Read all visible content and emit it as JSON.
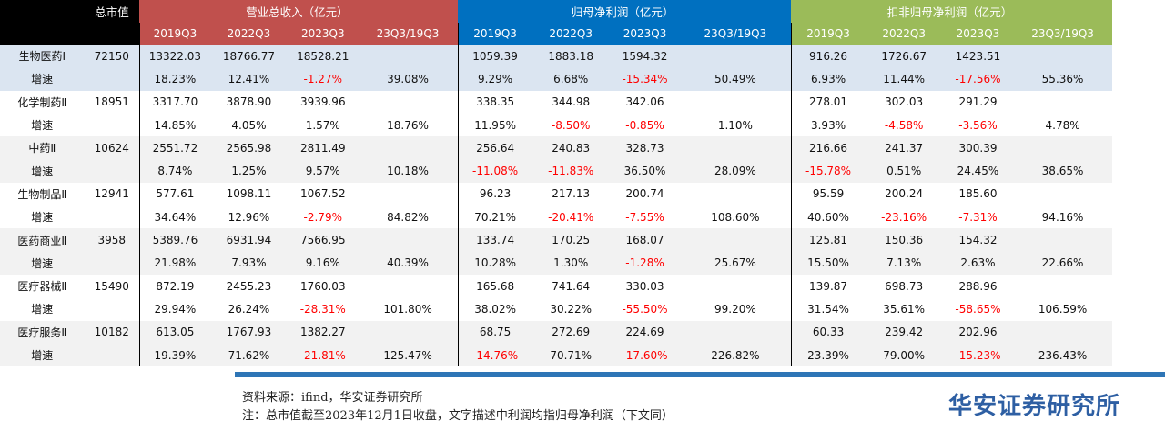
{
  "header": {
    "market_cap": "总市值",
    "revenue": "营业总收入（亿元）",
    "net_profit": "归母净利润（亿元）",
    "deducted_profit": "扣非归母净利润（亿元）",
    "periods": [
      "2019Q3",
      "2022Q3",
      "2023Q3",
      "23Q3/19Q3"
    ]
  },
  "rows": [
    {
      "name": "生物医药Ⅰ",
      "cap": "72150",
      "shade": "g1",
      "val": [
        "13322.03",
        "18766.77",
        "18528.21",
        "",
        "1059.39",
        "1883.18",
        "1594.32",
        "",
        "916.26",
        "1726.67",
        "1423.51",
        ""
      ],
      "growth": [
        "18.23%",
        "12.41%",
        "-1.27%",
        "39.08%",
        "9.29%",
        "6.68%",
        "-15.34%",
        "50.49%",
        "6.93%",
        "11.44%",
        "-17.56%",
        "55.36%"
      ]
    },
    {
      "name": "化学制药Ⅱ",
      "cap": "18951",
      "shade": "g3",
      "val": [
        "3317.70",
        "3878.90",
        "3939.96",
        "",
        "338.35",
        "344.98",
        "342.06",
        "",
        "278.01",
        "302.03",
        "291.29",
        ""
      ],
      "growth": [
        "14.85%",
        "4.05%",
        "1.57%",
        "18.76%",
        "11.95%",
        "-8.50%",
        "-0.85%",
        "1.10%",
        "3.93%",
        "-4.58%",
        "-3.56%",
        "4.78%"
      ]
    },
    {
      "name": "中药Ⅱ",
      "cap": "10624",
      "shade": "g2",
      "val": [
        "2551.72",
        "2565.98",
        "2811.49",
        "",
        "256.64",
        "240.83",
        "328.73",
        "",
        "216.66",
        "241.37",
        "300.39",
        ""
      ],
      "growth": [
        "8.74%",
        "1.25%",
        "9.57%",
        "10.18%",
        "-11.08%",
        "-11.83%",
        "36.50%",
        "28.09%",
        "-15.78%",
        "0.51%",
        "24.45%",
        "38.65%"
      ]
    },
    {
      "name": "生物制品Ⅱ",
      "cap": "12941",
      "shade": "g3",
      "val": [
        "577.61",
        "1098.11",
        "1067.52",
        "",
        "96.23",
        "217.13",
        "200.74",
        "",
        "95.59",
        "200.24",
        "185.60",
        ""
      ],
      "growth": [
        "34.64%",
        "12.96%",
        "-2.79%",
        "84.82%",
        "70.21%",
        "-20.41%",
        "-7.55%",
        "108.60%",
        "40.60%",
        "-23.16%",
        "-7.31%",
        "94.16%"
      ]
    },
    {
      "name": "医药商业Ⅱ",
      "cap": "3958",
      "shade": "g2",
      "val": [
        "5389.76",
        "6931.94",
        "7566.95",
        "",
        "133.74",
        "170.25",
        "168.07",
        "",
        "125.81",
        "150.36",
        "154.32",
        ""
      ],
      "growth": [
        "21.98%",
        "7.93%",
        "9.16%",
        "40.39%",
        "10.28%",
        "1.30%",
        "-1.28%",
        "25.67%",
        "15.50%",
        "7.13%",
        "2.63%",
        "22.66%"
      ]
    },
    {
      "name": "医疗器械Ⅱ",
      "cap": "15490",
      "shade": "g3",
      "val": [
        "872.19",
        "2455.23",
        "1760.03",
        "",
        "165.68",
        "741.64",
        "330.03",
        "",
        "139.87",
        "698.73",
        "288.96",
        ""
      ],
      "growth": [
        "29.94%",
        "26.24%",
        "-28.31%",
        "101.80%",
        "38.02%",
        "30.22%",
        "-55.50%",
        "99.20%",
        "31.54%",
        "35.61%",
        "-58.65%",
        "106.59%"
      ]
    },
    {
      "name": "医疗服务Ⅱ",
      "cap": "10182",
      "shade": "g2",
      "val": [
        "613.05",
        "1767.93",
        "1382.27",
        "",
        "68.75",
        "272.69",
        "224.69",
        "",
        "60.33",
        "239.42",
        "202.96",
        ""
      ],
      "growth": [
        "19.39%",
        "71.62%",
        "-21.81%",
        "125.47%",
        "-14.76%",
        "70.71%",
        "-17.60%",
        "226.82%",
        "23.39%",
        "79.00%",
        "-15.23%",
        "236.43%"
      ]
    }
  ],
  "growth_label": "增速",
  "negative_color": "#ff0000",
  "colors": {
    "revenue": "#c0504d",
    "net_profit": "#0070c0",
    "deducted_profit": "#9bbb59",
    "first_row": "#dbe5f1",
    "alt_row": "#f2f2f2",
    "footer_bar": "#2e75b6",
    "logo": "#2e5fa3"
  },
  "footer": {
    "source": "资料来源：ifind，华安证券研究所",
    "note": "注：总市值截至2023年12月1日收盘，文字描述中利润均指归母净利润（下文同）",
    "logo": "华安证券研究所"
  }
}
